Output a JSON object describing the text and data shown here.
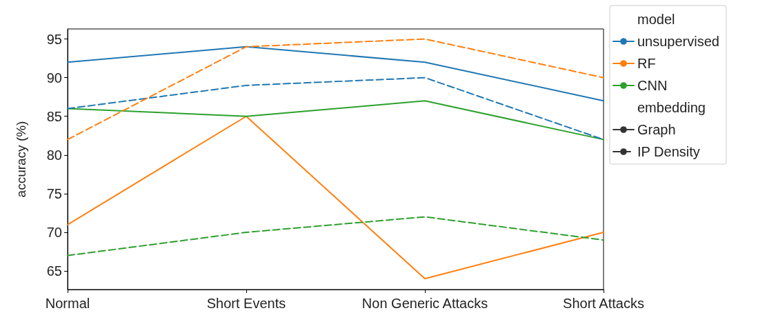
{
  "chart_data": {
    "type": "line",
    "ylabel": "accuracy (%)",
    "legend_title": "model",
    "annotations": [
      "embedding"
    ],
    "categories": [
      "Normal",
      "Short Events",
      "Non Generic Attacks",
      "Short Attacks"
    ],
    "ylim": [
      62.6,
      96.3
    ],
    "yticks": [
      65,
      70,
      75,
      80,
      85,
      90,
      95
    ],
    "grid": false,
    "legend": "top right",
    "marker": "none",
    "series": [
      {
        "name": "unsupervised",
        "color": "#1f77b4",
        "line_style": "solid",
        "values": [
          92,
          94,
          92,
          87
        ]
      },
      {
        "name": "RF",
        "color": "#ff7f0e",
        "line_style": "solid",
        "values": [
          71,
          85,
          64,
          70
        ]
      },
      {
        "name": "CNN",
        "color": "#2ca02c",
        "line_style": "solid",
        "values": [
          86,
          85,
          87,
          82
        ]
      },
      {
        "name": "Graph",
        "color": "#333333",
        "line_style": "solid",
        "values": [
          null,
          null,
          null,
          null
        ]
      },
      {
        "name": "IP Density",
        "color": "#333333",
        "line_style": "dashed",
        "values": [
          null,
          null,
          null,
          null
        ]
      },
      {
        "color": "#1f77b4",
        "line_style": "dashed",
        "values": [
          86,
          89,
          90,
          82
        ]
      },
      {
        "color": "#ff7f0e",
        "line_style": "dashed",
        "values": [
          82,
          94,
          95,
          90
        ]
      },
      {
        "color": "#2ca02c",
        "line_style": "dashed",
        "values": [
          67,
          70,
          72,
          69
        ]
      }
    ]
  }
}
